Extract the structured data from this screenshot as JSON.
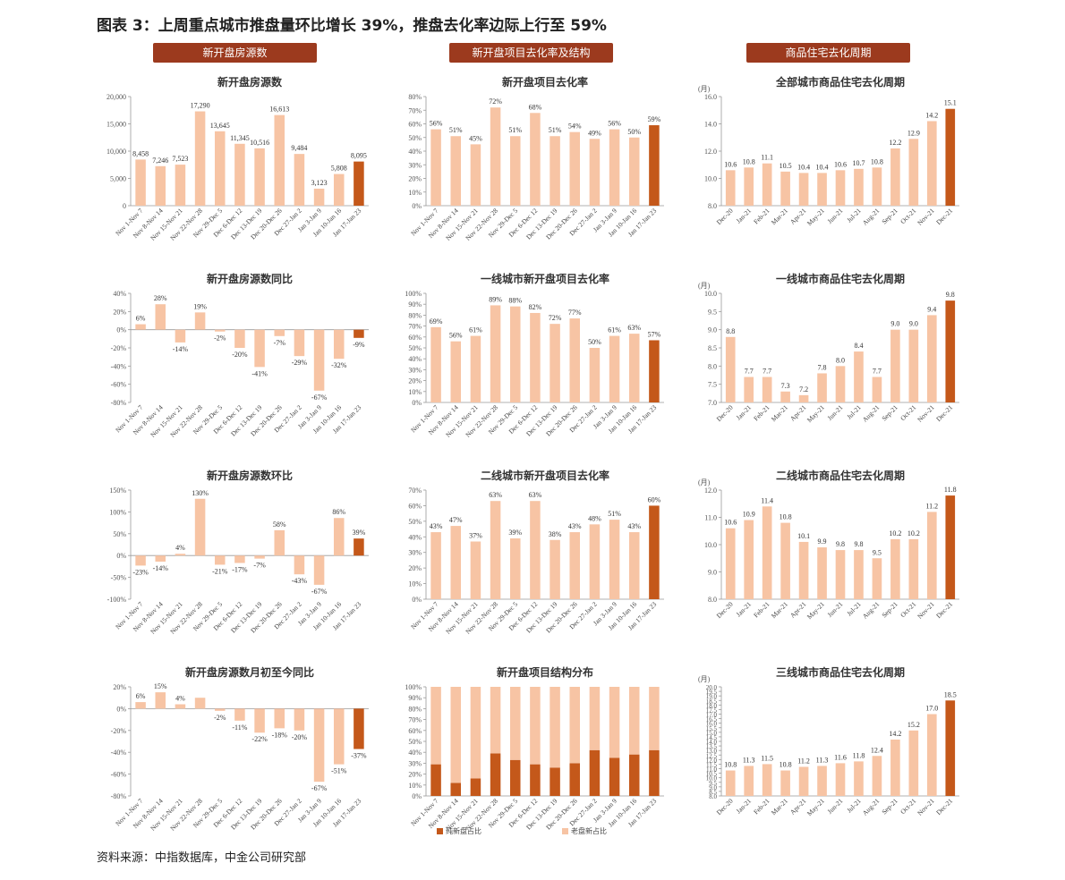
{
  "figure_title": "图表 3：上周重点城市推盘量环比增长 39%，推盘去化率边际上行至 59%",
  "column_headers": [
    "新开盘房源数",
    "新开盘项目去化率及结构",
    "商品住宅去化周期"
  ],
  "source": "资料来源：中指数据库，中金公司研究部",
  "colors": {
    "light": "#f7c4a4",
    "highlight": "#c4581a",
    "header": "#9c3a1e"
  },
  "chart_data": [
    {
      "type": "bar",
      "title": "新开盘房源数",
      "categories": [
        "Nov 1-Nov 7",
        "Nov 8-Nov 14",
        "Nov 15-Nov 21",
        "Nov 22-Nov 28",
        "Nov 29-Dec 5",
        "Dec 6-Dec 12",
        "Dec 13-Dec 19",
        "Dec 20-Dec 26",
        "Dec 27-Jan 2",
        "Jan 3-Jan 9",
        "Jan 10-Jan 16",
        "Jan 17-Jan 23"
      ],
      "values": [
        8458,
        7246,
        7523,
        17290,
        13645,
        11345,
        10516,
        16613,
        9484,
        3123,
        5808,
        8095
      ],
      "labels": [
        "8,458",
        "7,246",
        "7,523",
        "17,290",
        "13,645",
        "11,345",
        "10,516",
        "16,613",
        "9,484",
        "3,123",
        "5,808",
        "8,095"
      ],
      "ylim": [
        0,
        20000
      ],
      "yticks": [
        0,
        5000,
        10000,
        15000,
        20000
      ],
      "ytick_labels": [
        "0",
        "5,000",
        "10,000",
        "15,000",
        "20,000"
      ]
    },
    {
      "type": "bar",
      "title": "新开盘项目去化率",
      "categories": [
        "Nov 1-Nov 7",
        "Nov 8-Nov 14",
        "Nov 15-Nov 21",
        "Nov 22-Nov 28",
        "Nov 29-Dec 5",
        "Dec 6-Dec 12",
        "Dec 13-Dec 19",
        "Dec 20-Dec 26",
        "Dec 27-Jan 2",
        "Jan 3-Jan 9",
        "Jan 10-Jan 16",
        "Jan 17-Jan 23"
      ],
      "values": [
        56,
        51,
        45,
        72,
        51,
        68,
        51,
        54,
        49,
        56,
        50,
        59
      ],
      "labels": [
        "56%",
        "51%",
        "45%",
        "72%",
        "51%",
        "68%",
        "51%",
        "54%",
        "49%",
        "56%",
        "50%",
        "59%"
      ],
      "ylim": [
        0,
        80
      ],
      "yticks": [
        0,
        10,
        20,
        30,
        40,
        50,
        60,
        70,
        80
      ],
      "ytick_labels": [
        "0%",
        "10%",
        "20%",
        "30%",
        "40%",
        "50%",
        "60%",
        "70%",
        "80%"
      ]
    },
    {
      "type": "bar",
      "title": "全部城市商品住宅去化周期",
      "unit": "(月)",
      "categories": [
        "Dec-20",
        "Jan-21",
        "Feb-21",
        "Mar-21",
        "Apr-21",
        "May-21",
        "Jun-21",
        "Jul-21",
        "Aug-21",
        "Sep-21",
        "Oct-21",
        "Nov-21",
        "Dec-21"
      ],
      "values": [
        10.6,
        10.8,
        11.1,
        10.5,
        10.4,
        10.4,
        10.6,
        10.7,
        10.8,
        12.2,
        12.9,
        14.2,
        15.1
      ],
      "labels": [
        "10.6",
        "10.8",
        "11.1",
        "10.5",
        "10.4",
        "10.4",
        "10.6",
        "10.7",
        "10.8",
        "12.2",
        "12.9",
        "14.2",
        "15.1"
      ],
      "ylim": [
        8,
        16
      ],
      "yticks": [
        8,
        10,
        12,
        14,
        16
      ],
      "ytick_labels": [
        "8.0",
        "10.0",
        "12.0",
        "14.0",
        "16.0"
      ]
    },
    {
      "type": "bar",
      "title": "新开盘房源数同比",
      "categories": [
        "Nov 1-Nov 7",
        "Nov 8-Nov 14",
        "Nov 15-Nov 21",
        "Nov 22-Nov 28",
        "Nov 29-Dec 5",
        "Dec 6-Dec 12",
        "Dec 13-Dec 19",
        "Dec 20-Dec 26",
        "Dec 27-Jan 2",
        "Jan 3-Jan 9",
        "Jan 10-Jan 16",
        "Jan 17-Jan 23"
      ],
      "values": [
        6,
        28,
        -14,
        19,
        -2,
        -20,
        -41,
        -7,
        -29,
        -67,
        -32,
        -9
      ],
      "labels": [
        "6%",
        "28%",
        "-14%",
        "19%",
        "-2%",
        "-20%",
        "-41%",
        "-7%",
        "-29%",
        "-67%",
        "-32%",
        "-9%"
      ],
      "ylim": [
        -80,
        40
      ],
      "yticks": [
        -80,
        -60,
        -40,
        -20,
        0,
        20,
        40
      ],
      "ytick_labels": [
        "-80%",
        "-60%",
        "-40%",
        "-20%",
        "0%",
        "20%",
        "40%"
      ]
    },
    {
      "type": "bar",
      "title": "一线城市新开盘项目去化率",
      "categories": [
        "Nov 1-Nov 7",
        "Nov 8-Nov 14",
        "Nov 15-Nov 21",
        "Nov 22-Nov 28",
        "Nov 29-Dec 5",
        "Dec 6-Dec 12",
        "Dec 13-Dec 19",
        "Dec 20-Dec 26",
        "Dec 27-Jan 2",
        "Jan 3-Jan 9",
        "Jan 10-Jan 16",
        "Jan 17-Jan 23"
      ],
      "values": [
        69,
        56,
        61,
        89,
        88,
        82,
        72,
        77,
        50,
        61,
        63,
        57
      ],
      "labels": [
        "69%",
        "56%",
        "61%",
        "89%",
        "88%",
        "82%",
        "72%",
        "77%",
        "50%",
        "61%",
        "63%",
        "57%"
      ],
      "ylim": [
        0,
        100
      ],
      "yticks": [
        0,
        10,
        20,
        30,
        40,
        50,
        60,
        70,
        80,
        90,
        100
      ],
      "ytick_labels": [
        "0%",
        "10%",
        "20%",
        "30%",
        "40%",
        "50%",
        "60%",
        "70%",
        "80%",
        "90%",
        "100%"
      ]
    },
    {
      "type": "bar",
      "title": "一线城市商品住宅去化周期",
      "unit": "(月)",
      "categories": [
        "Dec-20",
        "Jan-21",
        "Feb-21",
        "Mar-21",
        "Apr-21",
        "May-21",
        "Jun-21",
        "Jul-21",
        "Aug-21",
        "Sep-21",
        "Oct-21",
        "Nov-21",
        "Dec-21"
      ],
      "values": [
        8.8,
        7.7,
        7.7,
        7.3,
        7.2,
        7.8,
        8.0,
        8.4,
        7.7,
        9.0,
        9.0,
        9.4,
        9.8
      ],
      "labels": [
        "8.8",
        "7.7",
        "7.7",
        "7.3",
        "7.2",
        "7.8",
        "8.0",
        "8.4",
        "7.7",
        "9.0",
        "9.0",
        "9.4",
        "9.8"
      ],
      "ylim": [
        7,
        10
      ],
      "yticks": [
        7,
        7.5,
        8,
        8.5,
        9,
        9.5,
        10
      ],
      "ytick_labels": [
        "7.0",
        "7.5",
        "8.0",
        "8.5",
        "9.0",
        "9.5",
        "10.0"
      ]
    },
    {
      "type": "bar",
      "title": "新开盘房源数环比",
      "categories": [
        "Nov 1-Nov 7",
        "Nov 8-Nov 14",
        "Nov 15-Nov 21",
        "Nov 22-Nov 28",
        "Nov 29-Dec 5",
        "Dec 6-Dec 12",
        "Dec 13-Dec 19",
        "Dec 20-Dec 26",
        "Dec 27-Jan 2",
        "Jan 3-Jan 9",
        "Jan 10-Jan 16",
        "Jan 17-Jan 23"
      ],
      "values": [
        -23,
        -14,
        4,
        130,
        -21,
        -17,
        -7,
        58,
        -43,
        -67,
        86,
        39
      ],
      "labels": [
        "-23%",
        "-14%",
        "4%",
        "130%",
        "-21%",
        "-17%",
        "-7%",
        "58%",
        "-43%",
        "-67%",
        "86%",
        "39%"
      ],
      "ylim": [
        -100,
        150
      ],
      "yticks": [
        -100,
        -50,
        0,
        50,
        100,
        150
      ],
      "ytick_labels": [
        "-100%",
        "-50%",
        "0%",
        "50%",
        "100%",
        "150%"
      ]
    },
    {
      "type": "bar",
      "title": "二线城市新开盘项目去化率",
      "categories": [
        "Nov 1-Nov 7",
        "Nov 8-Nov 14",
        "Nov 15-Nov 21",
        "Nov 22-Nov 28",
        "Nov 29-Dec 5",
        "Dec 6-Dec 12",
        "Dec 13-Dec 19",
        "Dec 20-Dec 26",
        "Dec 27-Jan 2",
        "Jan 3-Jan 9",
        "Jan 10-Jan 16",
        "Jan 17-Jan 23"
      ],
      "values": [
        43,
        47,
        37,
        63,
        39,
        63,
        38,
        43,
        48,
        51,
        43,
        60
      ],
      "labels": [
        "43%",
        "47%",
        "37%",
        "63%",
        "39%",
        "63%",
        "38%",
        "43%",
        "48%",
        "51%",
        "43%",
        "60%"
      ],
      "ylim": [
        0,
        70
      ],
      "yticks": [
        0,
        10,
        20,
        30,
        40,
        50,
        60,
        70
      ],
      "ytick_labels": [
        "0%",
        "10%",
        "20%",
        "30%",
        "40%",
        "50%",
        "60%",
        "70%"
      ]
    },
    {
      "type": "bar",
      "title": "二线城市商品住宅去化周期",
      "unit": "(月)",
      "categories": [
        "Dec-20",
        "Jan-21",
        "Feb-21",
        "Mar-21",
        "Apr-21",
        "May-21",
        "Jun-21",
        "Jul-21",
        "Aug-21",
        "Sep-21",
        "Oct-21",
        "Nov-21",
        "Dec-21"
      ],
      "values": [
        10.6,
        10.9,
        11.4,
        10.8,
        10.1,
        9.9,
        9.8,
        9.8,
        9.5,
        10.2,
        10.2,
        11.2,
        11.8
      ],
      "labels": [
        "10.6",
        "10.9",
        "11.4",
        "10.8",
        "10.1",
        "9.9",
        "9.8",
        "9.8",
        "9.5",
        "10.2",
        "10.2",
        "11.2",
        "11.8"
      ],
      "ylim": [
        8,
        12
      ],
      "yticks": [
        8,
        9,
        10,
        11,
        12
      ],
      "ytick_labels": [
        "8.0",
        "9.0",
        "10.0",
        "11.0",
        "12.0"
      ]
    },
    {
      "type": "bar",
      "title": "新开盘房源数月初至今同比",
      "categories": [
        "Nov 1-Nov 7",
        "Nov 8-Nov 14",
        "Nov 15-Nov 21",
        "Nov 22-Nov 28",
        "Nov 29-Dec 5",
        "Dec 6-Dec 12",
        "Dec 13-Dec 19",
        "Dec 20-Dec 26",
        "Dec 27-Jan 2",
        "Jan 3-Jan 9",
        "Jan 10-Jan 16",
        "Jan 17-Jan 23"
      ],
      "values": [
        6,
        15,
        4,
        10,
        -2,
        -11,
        -22,
        -18,
        -20,
        -67,
        -51,
        -37
      ],
      "labels": [
        "6%",
        "15%",
        "4%",
        "",
        "-2%",
        "-11%",
        "-22%",
        "-18%",
        "-20%",
        "-67%",
        "-51%",
        "-37%"
      ],
      "ylim": [
        -80,
        20
      ],
      "yticks": [
        -80,
        -60,
        -40,
        -20,
        0,
        20
      ],
      "ytick_labels": [
        "-80%",
        "-60%",
        "-40%",
        "-20%",
        "0%",
        "20%"
      ]
    },
    {
      "type": "bar",
      "stacked": true,
      "title": "新开盘项目结构分布",
      "categories": [
        "Nov 1-Nov 7",
        "Nov 8-Nov 14",
        "Nov 15-Nov 21",
        "Nov 22-Nov 28",
        "Nov 29-Dec 5",
        "Dec 6-Dec 12",
        "Dec 13-Dec 19",
        "Dec 20-Dec 26",
        "Dec 27-Jan 2",
        "Jan 3-Jan 9",
        "Jan 10-Jan 16",
        "Jan 17-Jan 23"
      ],
      "series": [
        {
          "name": "纯新盘占比",
          "values": [
            29,
            12,
            16,
            39,
            33,
            29,
            26,
            30,
            42,
            35,
            38,
            42
          ]
        },
        {
          "name": "老盘新占比",
          "values": [
            71,
            88,
            84,
            61,
            67,
            71,
            74,
            70,
            58,
            65,
            62,
            58
          ]
        }
      ],
      "legend": "bottom",
      "ylim": [
        0,
        100
      ],
      "yticks": [
        0,
        10,
        20,
        30,
        40,
        50,
        60,
        70,
        80,
        90,
        100
      ],
      "ytick_labels": [
        "0%",
        "10%",
        "20%",
        "30%",
        "40%",
        "50%",
        "60%",
        "70%",
        "80%",
        "90%",
        "100%"
      ]
    },
    {
      "type": "bar",
      "title": "三线城市商品住宅去化周期",
      "unit": "(月)",
      "categories": [
        "Dec-20",
        "Jan-21",
        "Feb-21",
        "Mar-21",
        "Apr-21",
        "May-21",
        "Jun-21",
        "Jul-21",
        "Aug-21",
        "Sep-21",
        "Oct-21",
        "Nov-21",
        "Dec-21"
      ],
      "values": [
        10.8,
        11.3,
        11.5,
        10.8,
        11.2,
        11.3,
        11.6,
        11.8,
        12.4,
        14.2,
        15.2,
        17.0,
        18.5
      ],
      "labels": [
        "10.8",
        "11.3",
        "11.5",
        "10.8",
        "11.2",
        "11.3",
        "11.6",
        "11.8",
        "12.4",
        "14.2",
        "15.2",
        "17.0",
        "18.5"
      ],
      "ylim": [
        8,
        20
      ],
      "yticks": [
        8,
        8.5,
        9,
        9.5,
        10,
        10.5,
        11,
        11.5,
        12,
        12.5,
        13,
        13.5,
        14,
        14.5,
        15,
        15.5,
        16,
        16.5,
        17,
        17.5,
        18,
        18.5,
        19,
        19.5,
        20
      ],
      "ytick_labels": [
        "8.0",
        "8.5",
        "9.0",
        "9.5",
        "10.0",
        "10.5",
        "11.0",
        "11.5",
        "12.0",
        "12.5",
        "13.0",
        "13.5",
        "14.0",
        "14.5",
        "15.0",
        "15.5",
        "16.0",
        "16.5",
        "17.0",
        "17.5",
        "18.0",
        "18.5",
        "19.0",
        "19.5",
        "20.0"
      ]
    }
  ]
}
